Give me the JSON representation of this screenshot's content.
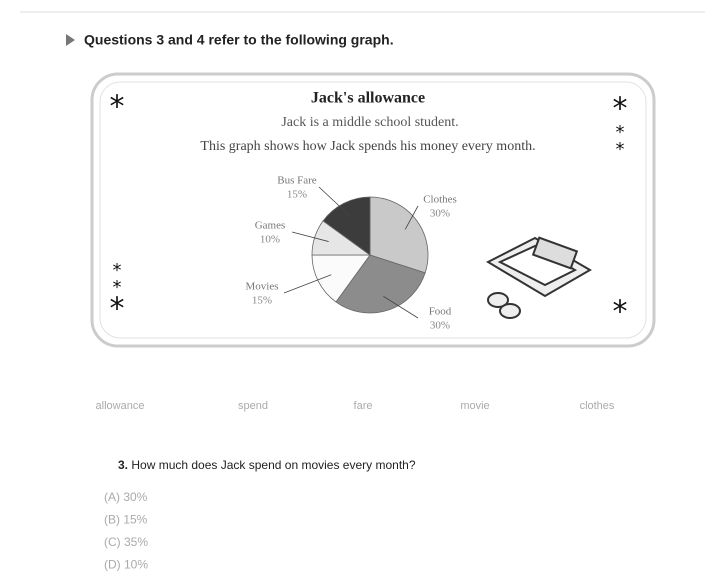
{
  "heading": "Questions 3 and 4 refer to the following graph.",
  "chart_data": {
    "type": "pie",
    "title": "Jack's allowance",
    "subtitle": [
      "Jack is a middle school student.",
      "This graph shows how Jack spends his money every month."
    ],
    "categories": [
      "Clothes",
      "Food",
      "Movies",
      "Games",
      "Bus Fare"
    ],
    "values": [
      30,
      30,
      15,
      10,
      15
    ],
    "value_labels": [
      "30%",
      "30%",
      "15%",
      "10%",
      "15%"
    ],
    "colors": [
      "#c9c9c9",
      "#8c8c8c",
      "#fbfbfb",
      "#e6e6e6",
      "#3c3c3c"
    ]
  },
  "vocabulary": [
    "allowance",
    "spend",
    "fare",
    "movie",
    "clothes"
  ],
  "question": {
    "number": "3.",
    "text": "How much does Jack spend on movies every month?",
    "options": [
      "(A) 30%",
      "(B) 15%",
      "(C) 35%",
      "(D) 10%"
    ]
  }
}
